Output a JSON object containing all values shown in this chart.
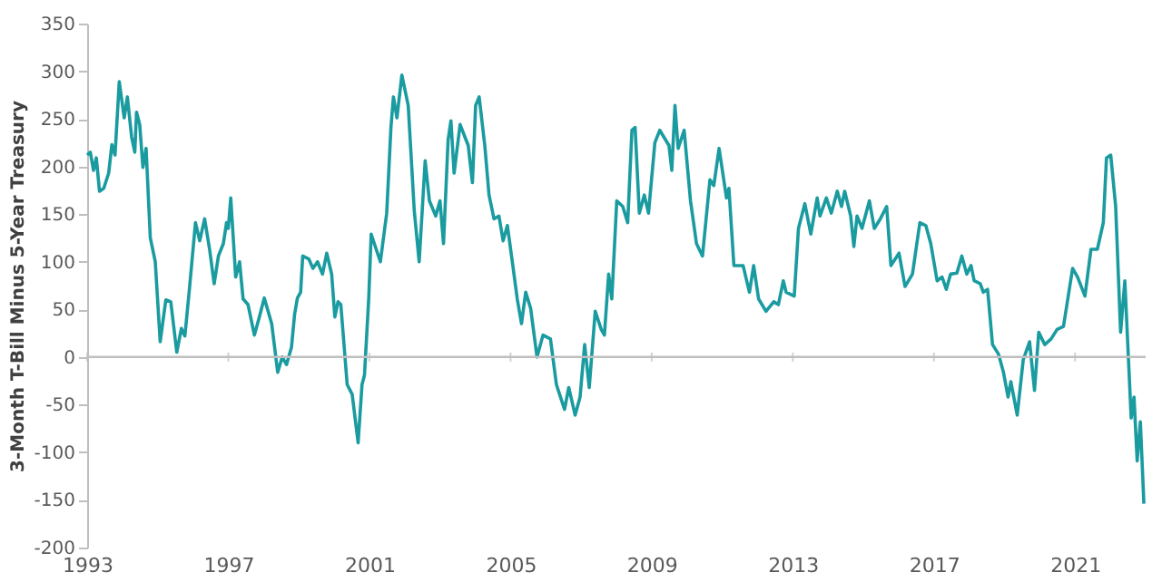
{
  "chart_data": {
    "type": "line",
    "ylabel": "3-Month T-Bill Minus 5-Year Treasury",
    "xlim": [
      1993,
      2023
    ],
    "xticks": [
      1993,
      1997,
      2001,
      2005,
      2009,
      2013,
      2017,
      2021
    ],
    "ylim": [
      -200,
      350
    ],
    "yticks": [
      -200,
      -150,
      -100,
      -50,
      0,
      50,
      100,
      150,
      200,
      250,
      300,
      350
    ],
    "grid": false,
    "marker": "none",
    "line_style": "solid",
    "ref_lines": [
      {
        "axis": "y",
        "value": 0,
        "color": "#bfbfbf"
      }
    ],
    "x": [
      1993.0,
      1993.09,
      1993.18,
      1993.26,
      1993.35,
      1993.47,
      1993.61,
      1993.7,
      1993.79,
      1993.91,
      1994.05,
      1994.14,
      1994.26,
      1994.35,
      1994.4,
      1994.49,
      1994.58,
      1994.67,
      1994.79,
      1994.93,
      1995.07,
      1995.23,
      1995.37,
      1995.54,
      1995.67,
      1995.77,
      1995.89,
      1996.07,
      1996.19,
      1996.33,
      1996.47,
      1996.6,
      1996.72,
      1996.86,
      1996.95,
      1997.0,
      1997.07,
      1997.21,
      1997.32,
      1997.42,
      1997.56,
      1997.74,
      1997.88,
      1998.02,
      1998.23,
      1998.4,
      1998.53,
      1998.65,
      1998.79,
      1998.88,
      1998.96,
      1999.05,
      1999.11,
      1999.28,
      1999.4,
      1999.53,
      1999.67,
      1999.79,
      1999.93,
      2000.02,
      2000.11,
      2000.19,
      2000.37,
      2000.51,
      2000.68,
      2000.79,
      2000.86,
      2000.98,
      2001.05,
      2001.31,
      2001.49,
      2001.61,
      2001.68,
      2001.78,
      2001.92,
      2002.1,
      2002.27,
      2002.41,
      2002.58,
      2002.7,
      2002.88,
      2003.0,
      2003.1,
      2003.23,
      2003.31,
      2003.4,
      2003.57,
      2003.8,
      2003.92,
      2004.01,
      2004.11,
      2004.27,
      2004.39,
      2004.53,
      2004.67,
      2004.79,
      2004.91,
      2005.05,
      2005.19,
      2005.31,
      2005.43,
      2005.57,
      2005.75,
      2005.92,
      2006.13,
      2006.3,
      2006.53,
      2006.65,
      2006.83,
      2006.97,
      2007.1,
      2007.23,
      2007.4,
      2007.57,
      2007.66,
      2007.78,
      2007.87,
      2008.01,
      2008.18,
      2008.32,
      2008.44,
      2008.53,
      2008.65,
      2008.79,
      2008.91,
      2009.09,
      2009.23,
      2009.49,
      2009.57,
      2009.66,
      2009.75,
      2009.92,
      2010.1,
      2010.27,
      2010.44,
      2010.65,
      2010.76,
      2010.91,
      2011.12,
      2011.19,
      2011.33,
      2011.59,
      2011.77,
      2011.89,
      2012.03,
      2012.24,
      2012.46,
      2012.59,
      2012.73,
      2012.81,
      2013.04,
      2013.16,
      2013.34,
      2013.51,
      2013.69,
      2013.77,
      2013.95,
      2014.09,
      2014.26,
      2014.38,
      2014.47,
      2014.64,
      2014.73,
      2014.82,
      2014.96,
      2015.17,
      2015.31,
      2015.48,
      2015.66,
      2015.78,
      2016.01,
      2016.18,
      2016.39,
      2016.6,
      2016.77,
      2016.91,
      2017.09,
      2017.23,
      2017.35,
      2017.47,
      2017.65,
      2017.79,
      2017.93,
      2018.05,
      2018.14,
      2018.31,
      2018.4,
      2018.52,
      2018.66,
      2018.83,
      2018.97,
      2019.1,
      2019.18,
      2019.36,
      2019.53,
      2019.71,
      2019.85,
      2019.97,
      2020.14,
      2020.32,
      2020.49,
      2020.67,
      2020.93,
      2021.07,
      2021.28,
      2021.45,
      2021.63,
      2021.8,
      2021.89,
      2022.01,
      2022.15,
      2022.29,
      2022.41,
      2022.59,
      2022.67,
      2022.76,
      2022.85,
      2022.95
    ],
    "series": [
      {
        "color": "#1a9ba0",
        "values": [
          212,
          215,
          196,
          209,
          174,
          177,
          193,
          223,
          212,
          289,
          251,
          273,
          231,
          215,
          257,
          244,
          199,
          219,
          125,
          100,
          16,
          60,
          58,
          5,
          30,
          22,
          68,
          141,
          122,
          145,
          113,
          77,
          106,
          119,
          141,
          135,
          167,
          84,
          100,
          61,
          55,
          23,
          42,
          62,
          35,
          -16,
          0,
          -8,
          10,
          45,
          62,
          68,
          106,
          103,
          93,
          100,
          87,
          109,
          87,
          42,
          58,
          55,
          -29,
          -39,
          -90,
          -29,
          -19,
          61,
          129,
          100,
          151,
          241,
          273,
          251,
          296,
          264,
          154,
          100,
          206,
          164,
          148,
          164,
          119,
          228,
          248,
          193,
          244,
          222,
          183,
          264,
          273,
          222,
          170,
          145,
          148,
          122,
          138,
          100,
          61,
          35,
          68,
          51,
          0,
          23,
          19,
          -29,
          -55,
          -32,
          -61,
          -42,
          13,
          -32,
          48,
          29,
          23,
          87,
          61,
          164,
          158,
          141,
          238,
          241,
          151,
          170,
          151,
          225,
          238,
          222,
          196,
          264,
          219,
          238,
          164,
          119,
          106,
          186,
          180,
          219,
          167,
          177,
          96,
          96,
          68,
          96,
          61,
          48,
          58,
          55,
          80,
          68,
          64,
          135,
          161,
          129,
          167,
          148,
          167,
          151,
          174,
          158,
          174,
          148,
          116,
          148,
          135,
          164,
          135,
          145,
          158,
          96,
          109,
          74,
          87,
          141,
          138,
          119,
          80,
          84,
          71,
          87,
          88,
          106,
          87,
          96,
          80,
          77,
          68,
          71,
          13,
          3,
          -16,
          -42,
          -26,
          -61,
          -3,
          16,
          -35,
          26,
          13,
          19,
          29,
          32,
          93,
          84,
          64,
          113,
          113,
          141,
          209,
          212,
          158,
          26,
          80,
          -64,
          -42,
          -109,
          -68,
          -154
        ]
      }
    ]
  }
}
